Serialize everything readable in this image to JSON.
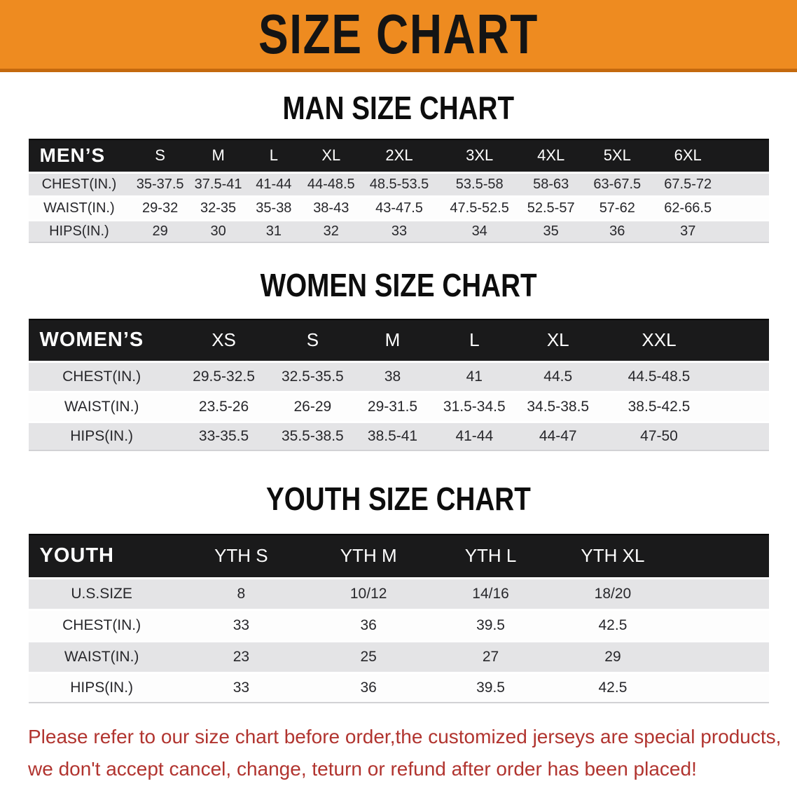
{
  "banner": {
    "title": "SIZE CHART"
  },
  "colors": {
    "banner_bg": "#ee8b20",
    "banner_edge": "#c4690e",
    "header_band": "#1a1a1b",
    "row_alt": "#e4e4e6",
    "note_red": "#b1342f"
  },
  "sections": [
    {
      "heading": "MAN SIZE CHART",
      "table": {
        "header_label": "MEN’S",
        "columns": [
          "S",
          "M",
          "L",
          "XL",
          "2XL",
          "3XL",
          "4XL",
          "5XL",
          "6XL"
        ],
        "rows": [
          {
            "label": "CHEST(IN.)",
            "values": [
              "35-37.5",
              "37.5-41",
              "41-44",
              "44-48.5",
              "48.5-53.5",
              "53.5-58",
              "58-63",
              "63-67.5",
              "67.5-72"
            ]
          },
          {
            "label": "WAIST(IN.)",
            "values": [
              "29-32",
              "32-35",
              "35-38",
              "38-43",
              "43-47.5",
              "47.5-52.5",
              "52.5-57",
              "57-62",
              "62-66.5"
            ]
          },
          {
            "label": "HIPS(IN.)",
            "values": [
              "29",
              "30",
              "31",
              "32",
              "33",
              "34",
              "35",
              "36",
              "37"
            ]
          }
        ]
      }
    },
    {
      "heading": "WOMEN SIZE CHART",
      "table": {
        "header_label": "WOMEN’S",
        "columns": [
          "XS",
          "S",
          "M",
          "L",
          "XL",
          "XXL"
        ],
        "rows": [
          {
            "label": "CHEST(IN.)",
            "values": [
              "29.5-32.5",
              "32.5-35.5",
              "38",
              "41",
              "44.5",
              "44.5-48.5"
            ]
          },
          {
            "label": "WAIST(IN.)",
            "values": [
              "23.5-26",
              "26-29",
              "29-31.5",
              "31.5-34.5",
              "34.5-38.5",
              "38.5-42.5"
            ]
          },
          {
            "label": "HIPS(IN.)",
            "values": [
              "33-35.5",
              "35.5-38.5",
              "38.5-41",
              "41-44",
              "44-47",
              "47-50"
            ]
          }
        ]
      }
    },
    {
      "heading": "YOUTH SIZE CHART",
      "table": {
        "header_label": "YOUTH",
        "columns": [
          "YTH S",
          "YTH M",
          "YTH L",
          "YTH XL"
        ],
        "rows": [
          {
            "label": "U.S.SIZE",
            "values": [
              "8",
              "10/12",
              "14/16",
              "18/20"
            ]
          },
          {
            "label": "CHEST(IN.)",
            "values": [
              "33",
              "36",
              "39.5",
              "42.5"
            ]
          },
          {
            "label": "WAIST(IN.)",
            "values": [
              "23",
              "25",
              "27",
              "29"
            ]
          },
          {
            "label": "HIPS(IN.)",
            "values": [
              "33",
              "36",
              "39.5",
              "42.5"
            ]
          }
        ]
      }
    }
  ],
  "footer": {
    "line1": "Please refer to our size chart before order,the customized jerseys are special products,",
    "line2": "we don't accept cancel, change, teturn or refund after order has been placed!"
  }
}
